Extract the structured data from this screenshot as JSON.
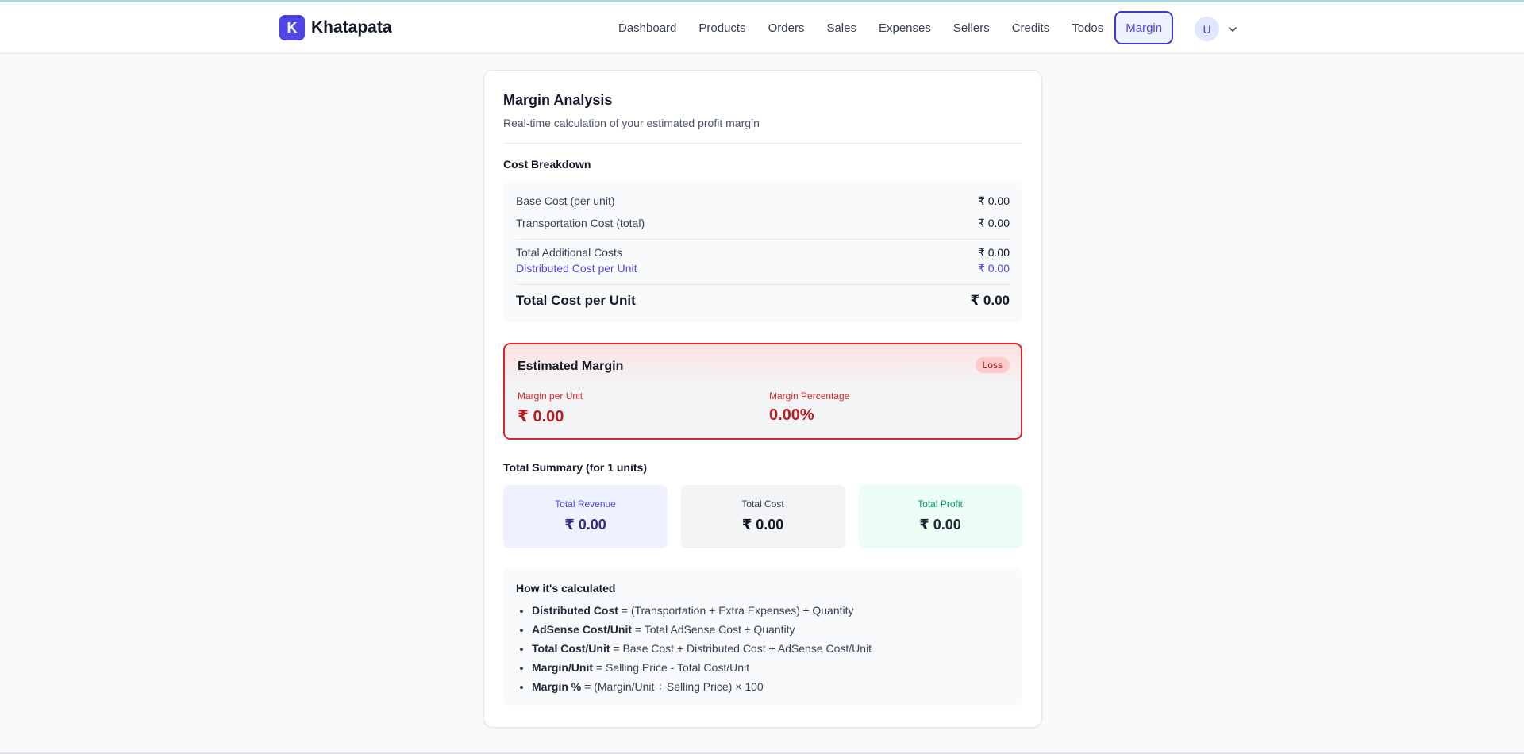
{
  "brand": {
    "logo_letter": "K",
    "name": "Khatapata"
  },
  "nav": {
    "items": [
      {
        "label": "Dashboard"
      },
      {
        "label": "Products"
      },
      {
        "label": "Orders"
      },
      {
        "label": "Sales"
      },
      {
        "label": "Expenses"
      },
      {
        "label": "Sellers"
      },
      {
        "label": "Credits"
      },
      {
        "label": "Todos"
      },
      {
        "label": "Margin"
      }
    ],
    "active": "Margin"
  },
  "user": {
    "avatar_letter": "U",
    "menu_icon": "chevron-down-icon"
  },
  "card": {
    "title": "Margin Analysis",
    "subtitle": "Real-time calculation of your estimated profit margin"
  },
  "breakdown": {
    "title": "Cost Breakdown",
    "base_cost_label": "Base Cost (per unit)",
    "base_cost_value": "₹ 0.00",
    "transport_label": "Transportation Cost (total)",
    "transport_value": "₹ 0.00",
    "additional_label": "Total Additional Costs",
    "additional_value": "₹ 0.00",
    "distributed_label": "Distributed Cost per Unit",
    "distributed_value": "₹ 0.00",
    "total_label": "Total Cost per Unit",
    "total_value": "₹ 0.00"
  },
  "margin": {
    "title": "Estimated Margin",
    "status": "Loss",
    "per_unit_label": "Margin per Unit",
    "per_unit_value": "₹ 0.00",
    "percent_label": "Margin Percentage",
    "percent_value": "0.00%"
  },
  "summary": {
    "title": "Total Summary (for 1 units)",
    "revenue_label": "Total Revenue",
    "revenue_value": "₹ 0.00",
    "cost_label": "Total Cost",
    "cost_value": "₹ 0.00",
    "profit_label": "Total Profit",
    "profit_value": "₹ 0.00"
  },
  "how": {
    "title": "How it's calculated",
    "items": [
      {
        "term": "Distributed Cost",
        "formula": " = (Transportation + Extra Expenses) ÷ Quantity"
      },
      {
        "term": "AdSense Cost/Unit",
        "formula": " = Total AdSense Cost ÷ Quantity"
      },
      {
        "term": "Total Cost/Unit",
        "formula": " = Base Cost + Distributed Cost + AdSense Cost/Unit"
      },
      {
        "term": "Margin/Unit",
        "formula": " = Selling Price - Total Cost/Unit"
      },
      {
        "term": "Margin %",
        "formula": " = (Margin/Unit ÷ Selling Price) × 100"
      }
    ]
  },
  "colors": {
    "accent": "#4f46e5",
    "loss": "#dc2626",
    "profit": "#059669"
  }
}
